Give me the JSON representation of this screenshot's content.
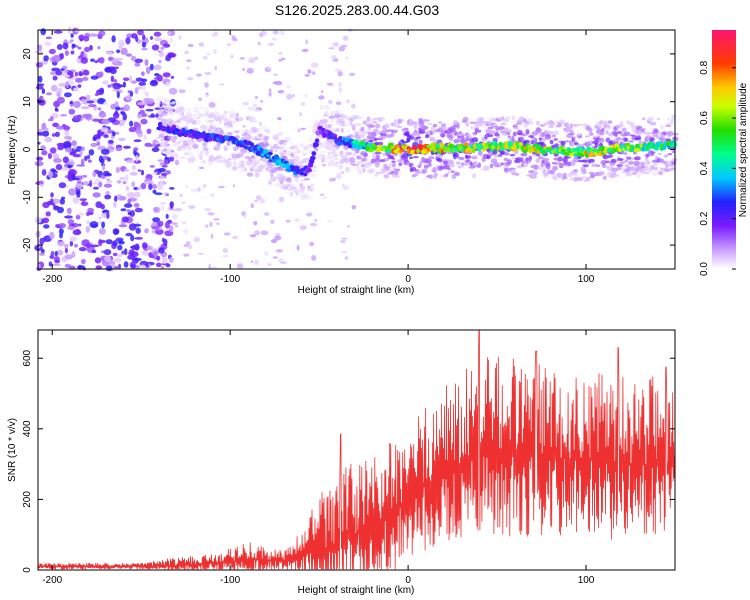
{
  "title": "S126.2025.283.00.44.G03",
  "colors": {
    "snr_line": "#ee3030",
    "background": "#ffffff",
    "frame": "#000000"
  },
  "chart_data": [
    {
      "type": "heatmap",
      "title": "S126.2025.283.00.44.G03",
      "xlabel": "Height of straight line (km)",
      "ylabel": "Frequency (Hz)",
      "xlim": [
        -208,
        150
      ],
      "ylim": [
        -25,
        25
      ],
      "xticks": [
        -200,
        -100,
        0,
        100
      ],
      "yticks": [
        -20,
        -10,
        0,
        10,
        20
      ],
      "x_tick_labels": [
        "-200",
        "-100",
        "0",
        "100"
      ],
      "y_tick_labels": [
        "-20",
        "-10",
        "0",
        "10",
        "20"
      ],
      "colorbar": {
        "label": "Normalized spectral amplitude",
        "range": [
          0,
          0.95
        ],
        "ticks": [
          0.0,
          0.2,
          0.4,
          0.6,
          0.8
        ],
        "tick_labels": [
          "0.0",
          "0.2",
          "0.4",
          "0.6",
          "0.8"
        ],
        "colormap": "rainbow"
      },
      "ridge": {
        "x": [
          -140,
          -130,
          -120,
          -110,
          -100,
          -90,
          -80,
          -70,
          -60,
          -55,
          -50,
          -40,
          -30,
          -20,
          -10,
          0,
          10,
          20,
          30,
          40,
          50,
          60,
          70,
          80,
          90,
          100,
          110,
          120,
          130,
          140,
          150
        ],
        "frequency": [
          5,
          4,
          3,
          2.5,
          2,
          1,
          -1,
          -3,
          -5,
          -4,
          4,
          2,
          1,
          0.5,
          0.3,
          0,
          0.2,
          0.3,
          0.2,
          0.5,
          0.7,
          0.6,
          0.3,
          0,
          -0.3,
          -0.8,
          0,
          0.3,
          0.5,
          0.7,
          1
        ],
        "amplitude": [
          0.25,
          0.3,
          0.28,
          0.3,
          0.35,
          0.3,
          0.38,
          0.4,
          0.3,
          0.25,
          0.2,
          0.3,
          0.45,
          0.6,
          0.75,
          0.95,
          0.9,
          0.8,
          0.75,
          0.75,
          0.7,
          0.75,
          0.75,
          0.7,
          0.7,
          0.75,
          0.7,
          0.7,
          0.65,
          0.6,
          0.55
        ]
      },
      "noise_region": {
        "x_range": [
          -208,
          -140
        ],
        "frequency_range": [
          -25,
          25
        ],
        "amplitude": 0.15
      }
    },
    {
      "type": "line",
      "xlabel": "Height of straight line (km)",
      "ylabel": "SNR (10 * v/v)",
      "xlim": [
        -208,
        150
      ],
      "ylim": [
        0,
        680
      ],
      "xticks": [
        -200,
        -100,
        0,
        100
      ],
      "yticks": [
        0,
        200,
        400,
        600
      ],
      "x_tick_labels": [
        "-200",
        "-100",
        "0",
        "100"
      ],
      "y_tick_labels": [
        "0",
        "200",
        "400",
        "600"
      ],
      "envelope": {
        "x": [
          -208,
          -150,
          -130,
          -110,
          -90,
          -70,
          -60,
          -50,
          -40,
          -35,
          -30,
          -20,
          -10,
          0,
          10,
          20,
          30,
          40,
          60,
          80,
          100,
          120,
          150
        ],
        "base": [
          10,
          10,
          12,
          20,
          30,
          25,
          40,
          55,
          60,
          80,
          100,
          120,
          150,
          200,
          240,
          270,
          300,
          320,
          330,
          320,
          310,
          300,
          300
        ],
        "spread": [
          10,
          10,
          25,
          25,
          50,
          30,
          70,
          160,
          200,
          230,
          200,
          200,
          220,
          200,
          230,
          250,
          270,
          300,
          280,
          260,
          250,
          260,
          240
        ]
      },
      "peaks": [
        {
          "x": -38,
          "y": 385
        },
        {
          "x": 40,
          "y": 680
        },
        {
          "x": 72,
          "y": 620
        },
        {
          "x": 118,
          "y": 630
        },
        {
          "x": 145,
          "y": 575
        }
      ]
    }
  ]
}
